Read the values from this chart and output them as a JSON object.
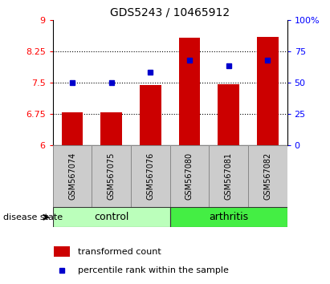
{
  "title": "GDS5243 / 10465912",
  "samples": [
    "GSM567074",
    "GSM567075",
    "GSM567076",
    "GSM567080",
    "GSM567081",
    "GSM567082"
  ],
  "bar_values": [
    6.78,
    6.79,
    7.43,
    8.58,
    7.45,
    8.6
  ],
  "scatter_values": [
    50,
    50,
    58,
    68,
    63,
    68
  ],
  "bar_color": "#cc0000",
  "scatter_color": "#0000cc",
  "ylim_left": [
    6,
    9
  ],
  "ylim_right": [
    0,
    100
  ],
  "yticks_left": [
    6,
    6.75,
    7.5,
    8.25,
    9
  ],
  "yticks_right": [
    0,
    25,
    50,
    75,
    100
  ],
  "ytick_labels_left": [
    "6",
    "6.75",
    "7.5",
    "8.25",
    "9"
  ],
  "ytick_labels_right": [
    "0",
    "25",
    "50",
    "75",
    "100%"
  ],
  "hlines": [
    6.75,
    7.5,
    8.25
  ],
  "group_control_color": "#bbffbb",
  "group_arthritis_color": "#44ee44",
  "disease_state_label": "disease state",
  "legend_bar_label": "transformed count",
  "legend_scatter_label": "percentile rank within the sample",
  "bar_bottom": 6,
  "bar_width": 0.55,
  "bg_color": "#f0f0f0",
  "title_fontsize": 10,
  "axis_fontsize": 8,
  "label_fontsize": 8,
  "tick_fontsize": 8
}
